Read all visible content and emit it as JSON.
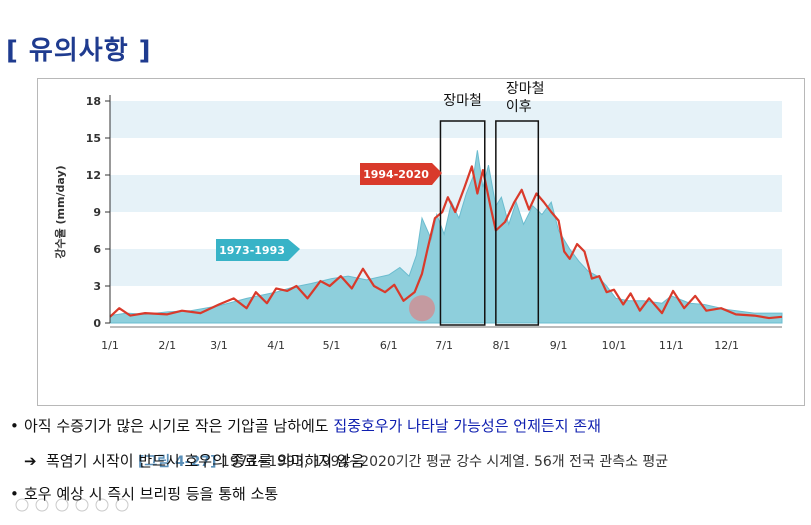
{
  "slide": {
    "title": "[ 유의사항 ]"
  },
  "figure": {
    "caption_label": "[그림 4-27]",
    "caption_text": " 1973~1993, 1994~2020기간 평균 강수 시계열. 56개 전국 관측소 평균"
  },
  "chart_data": {
    "type": "area",
    "ylabel": "강수율 (mm/day)",
    "xlabel": "",
    "ylim": [
      0,
      18
    ],
    "yticks": [
      0,
      3,
      6,
      9,
      12,
      15,
      18
    ],
    "xticks": [
      "1/1",
      "2/1",
      "3/1",
      "4/1",
      "5/1",
      "6/1",
      "7/1",
      "8/1",
      "9/1",
      "10/1",
      "11/1",
      "12/1"
    ],
    "x_unit": "day of year",
    "xlim": [
      1,
      365
    ],
    "grid_bands": true,
    "series": [
      {
        "name": "1973-1993",
        "style": "filled-area",
        "color": "#8ecfdc",
        "label_color": "#38b3c7",
        "points": [
          [
            1,
            0.6
          ],
          [
            10,
            0.8
          ],
          [
            20,
            0.7
          ],
          [
            32,
            0.9
          ],
          [
            45,
            1.0
          ],
          [
            60,
            1.4
          ],
          [
            75,
            2.0
          ],
          [
            91,
            2.5
          ],
          [
            100,
            2.9
          ],
          [
            110,
            3.2
          ],
          [
            121,
            3.6
          ],
          [
            130,
            3.8
          ],
          [
            140,
            3.5
          ],
          [
            152,
            3.9
          ],
          [
            158,
            4.5
          ],
          [
            163,
            3.8
          ],
          [
            167,
            5.5
          ],
          [
            170,
            8.5
          ],
          [
            175,
            6.8
          ],
          [
            178,
            8.8
          ],
          [
            182,
            7.2
          ],
          [
            186,
            9.8
          ],
          [
            190,
            8.5
          ],
          [
            194,
            10.5
          ],
          [
            198,
            12.0
          ],
          [
            200,
            14.0
          ],
          [
            203,
            11.0
          ],
          [
            206,
            12.8
          ],
          [
            210,
            9.5
          ],
          [
            213,
            10.2
          ],
          [
            217,
            8.0
          ],
          [
            221,
            9.8
          ],
          [
            225,
            8.0
          ],
          [
            230,
            9.5
          ],
          [
            235,
            8.8
          ],
          [
            240,
            9.8
          ],
          [
            244,
            7.5
          ],
          [
            250,
            6.0
          ],
          [
            255,
            5.0
          ],
          [
            260,
            4.2
          ],
          [
            265,
            3.8
          ],
          [
            270,
            3.0
          ],
          [
            275,
            2.0
          ],
          [
            282,
            1.8
          ],
          [
            290,
            1.8
          ],
          [
            300,
            1.6
          ],
          [
            305,
            2.2
          ],
          [
            315,
            1.6
          ],
          [
            323,
            1.5
          ],
          [
            335,
            1.1
          ],
          [
            350,
            0.8
          ],
          [
            365,
            0.8
          ]
        ]
      },
      {
        "name": "1994-2020",
        "style": "line",
        "color": "#d93a2b",
        "label_color": "#d93a2b",
        "points": [
          [
            1,
            0.5
          ],
          [
            6,
            1.2
          ],
          [
            12,
            0.6
          ],
          [
            20,
            0.8
          ],
          [
            32,
            0.7
          ],
          [
            40,
            1.0
          ],
          [
            50,
            0.8
          ],
          [
            60,
            1.5
          ],
          [
            68,
            2.0
          ],
          [
            75,
            1.2
          ],
          [
            80,
            2.5
          ],
          [
            86,
            1.6
          ],
          [
            91,
            2.8
          ],
          [
            97,
            2.6
          ],
          [
            102,
            3.0
          ],
          [
            108,
            2.0
          ],
          [
            115,
            3.4
          ],
          [
            120,
            3.0
          ],
          [
            126,
            3.8
          ],
          [
            132,
            2.8
          ],
          [
            138,
            4.4
          ],
          [
            144,
            3.0
          ],
          [
            150,
            2.5
          ],
          [
            155,
            3.1
          ],
          [
            160,
            1.8
          ],
          [
            166,
            2.5
          ],
          [
            170,
            4.0
          ],
          [
            173,
            6.0
          ],
          [
            177,
            8.5
          ],
          [
            181,
            9.0
          ],
          [
            184,
            10.2
          ],
          [
            188,
            9.0
          ],
          [
            193,
            11.0
          ],
          [
            197,
            12.7
          ],
          [
            200,
            10.5
          ],
          [
            203,
            12.4
          ],
          [
            207,
            9.5
          ],
          [
            210,
            7.5
          ],
          [
            215,
            8.2
          ],
          [
            220,
            9.8
          ],
          [
            224,
            10.8
          ],
          [
            228,
            9.2
          ],
          [
            232,
            10.5
          ],
          [
            236,
            9.8
          ],
          [
            240,
            9.0
          ],
          [
            244,
            8.3
          ],
          [
            247,
            5.8
          ],
          [
            250,
            5.2
          ],
          [
            254,
            6.4
          ],
          [
            258,
            5.8
          ],
          [
            262,
            3.6
          ],
          [
            266,
            3.8
          ],
          [
            270,
            2.5
          ],
          [
            274,
            2.7
          ],
          [
            279,
            1.5
          ],
          [
            283,
            2.4
          ],
          [
            288,
            1.0
          ],
          [
            293,
            2.0
          ],
          [
            300,
            0.8
          ],
          [
            306,
            2.6
          ],
          [
            312,
            1.2
          ],
          [
            318,
            2.2
          ],
          [
            324,
            1.0
          ],
          [
            332,
            1.2
          ],
          [
            340,
            0.7
          ],
          [
            350,
            0.6
          ],
          [
            358,
            0.4
          ],
          [
            365,
            0.5
          ]
        ]
      }
    ],
    "annotations": [
      {
        "label": "장마철",
        "x_range": [
          180,
          204
        ]
      },
      {
        "label": "장마철\n이후",
        "x_range": [
          210,
          233
        ]
      }
    ]
  },
  "bullets": [
    {
      "dot": "•",
      "text": "아직 수증기가 많은 시기로 작은 기압골 남하에도 ",
      "highlight": "집중호우가 나타날 가능성은 언제든지 존재"
    },
    {
      "arrow": "➔",
      "text": "폭염기 시작이 반드시 호우의 종료를 의미하지 않음"
    },
    {
      "dot": "•",
      "text": "호우 예상 시 즉시 브리핑 등을 통해 소통"
    }
  ]
}
